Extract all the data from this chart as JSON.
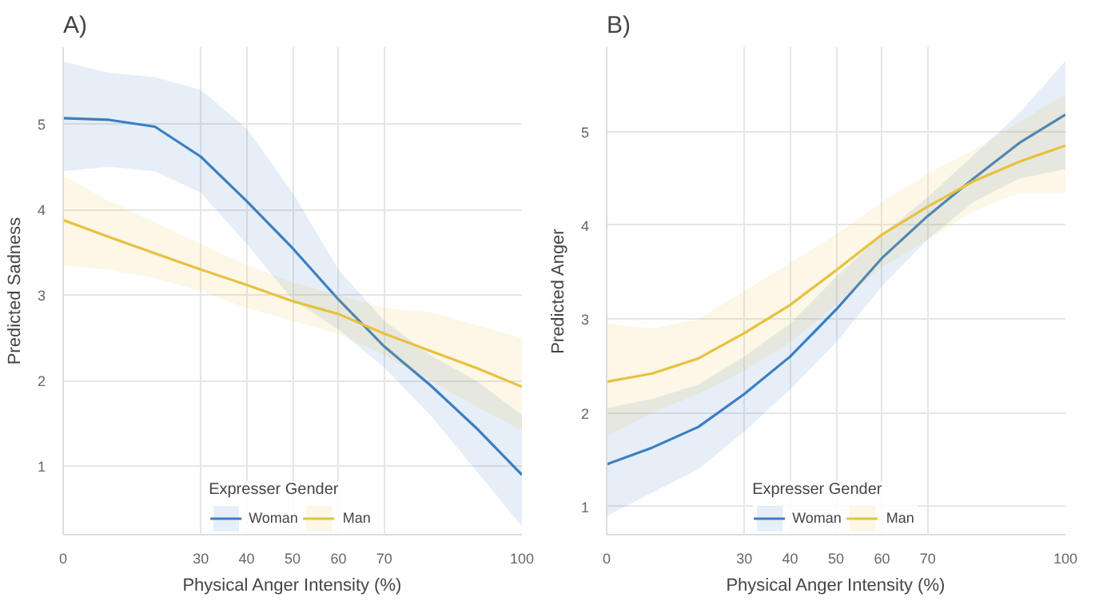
{
  "chart_data": [
    {
      "type": "line",
      "title": "A)",
      "xlabel": "Physical Anger Intensity (%)",
      "ylabel": "Predicted Sadness",
      "legend_title": "Expresser Gender",
      "legend": "bottom",
      "grid": true,
      "x": [
        0,
        10,
        20,
        30,
        40,
        50,
        60,
        70,
        80,
        90,
        100
      ],
      "xlim": [
        0,
        100
      ],
      "xticks": [
        0,
        30,
        40,
        50,
        60,
        70,
        100
      ],
      "ylim": [
        0.2,
        5.9
      ],
      "yticks": [
        1,
        2,
        3,
        4,
        5
      ],
      "series": [
        {
          "name": "Woman",
          "color": "#3b7fc0",
          "values": [
            5.07,
            5.05,
            4.97,
            4.62,
            4.1,
            3.55,
            2.95,
            2.4,
            1.95,
            1.45,
            0.9
          ],
          "lower": [
            4.45,
            4.5,
            4.45,
            4.2,
            3.6,
            2.95,
            2.6,
            2.15,
            1.6,
            0.95,
            0.3
          ],
          "upper": [
            5.73,
            5.6,
            5.55,
            5.4,
            4.95,
            4.2,
            3.3,
            2.7,
            2.3,
            2.0,
            1.6
          ]
        },
        {
          "name": "Man",
          "color": "#e8c13f",
          "values": [
            3.88,
            3.68,
            3.49,
            3.3,
            3.12,
            2.93,
            2.78,
            2.55,
            2.35,
            2.15,
            1.93
          ],
          "lower": [
            3.35,
            3.3,
            3.2,
            3.05,
            2.85,
            2.7,
            2.55,
            2.3,
            2.0,
            1.7,
            1.42
          ],
          "upper": [
            4.4,
            4.1,
            3.85,
            3.6,
            3.35,
            3.15,
            3.0,
            2.85,
            2.8,
            2.65,
            2.5
          ]
        }
      ]
    },
    {
      "type": "line",
      "title": "B)",
      "xlabel": "Physical Anger Intensity (%)",
      "ylabel": "Predicted Anger",
      "legend_title": "Expresser Gender",
      "legend": "bottom",
      "grid": true,
      "x": [
        0,
        10,
        20,
        30,
        40,
        50,
        60,
        70,
        80,
        90,
        100
      ],
      "xlim": [
        0,
        100
      ],
      "xticks": [
        0,
        30,
        40,
        50,
        60,
        70,
        100
      ],
      "ylim": [
        0.7,
        5.9
      ],
      "yticks": [
        1,
        2,
        3,
        4,
        5
      ],
      "series": [
        {
          "name": "Woman",
          "color": "#3b7fc0",
          "values": [
            1.45,
            1.63,
            1.85,
            2.2,
            2.6,
            3.1,
            3.65,
            4.1,
            4.5,
            4.88,
            5.18
          ],
          "lower": [
            0.9,
            1.15,
            1.4,
            1.8,
            2.25,
            2.75,
            3.35,
            3.85,
            4.25,
            4.5,
            4.6
          ],
          "upper": [
            2.05,
            2.15,
            2.3,
            2.6,
            2.95,
            3.45,
            3.9,
            4.3,
            4.75,
            5.2,
            5.75
          ]
        },
        {
          "name": "Man",
          "color": "#e8c13f",
          "values": [
            2.33,
            2.42,
            2.58,
            2.85,
            3.15,
            3.52,
            3.9,
            4.2,
            4.47,
            4.68,
            4.85
          ],
          "lower": [
            1.75,
            2.0,
            2.2,
            2.45,
            2.75,
            3.15,
            3.55,
            3.85,
            4.15,
            4.35,
            4.35
          ],
          "upper": [
            2.95,
            2.9,
            3.0,
            3.3,
            3.6,
            3.9,
            4.25,
            4.55,
            4.8,
            5.1,
            5.4
          ]
        }
      ]
    }
  ]
}
